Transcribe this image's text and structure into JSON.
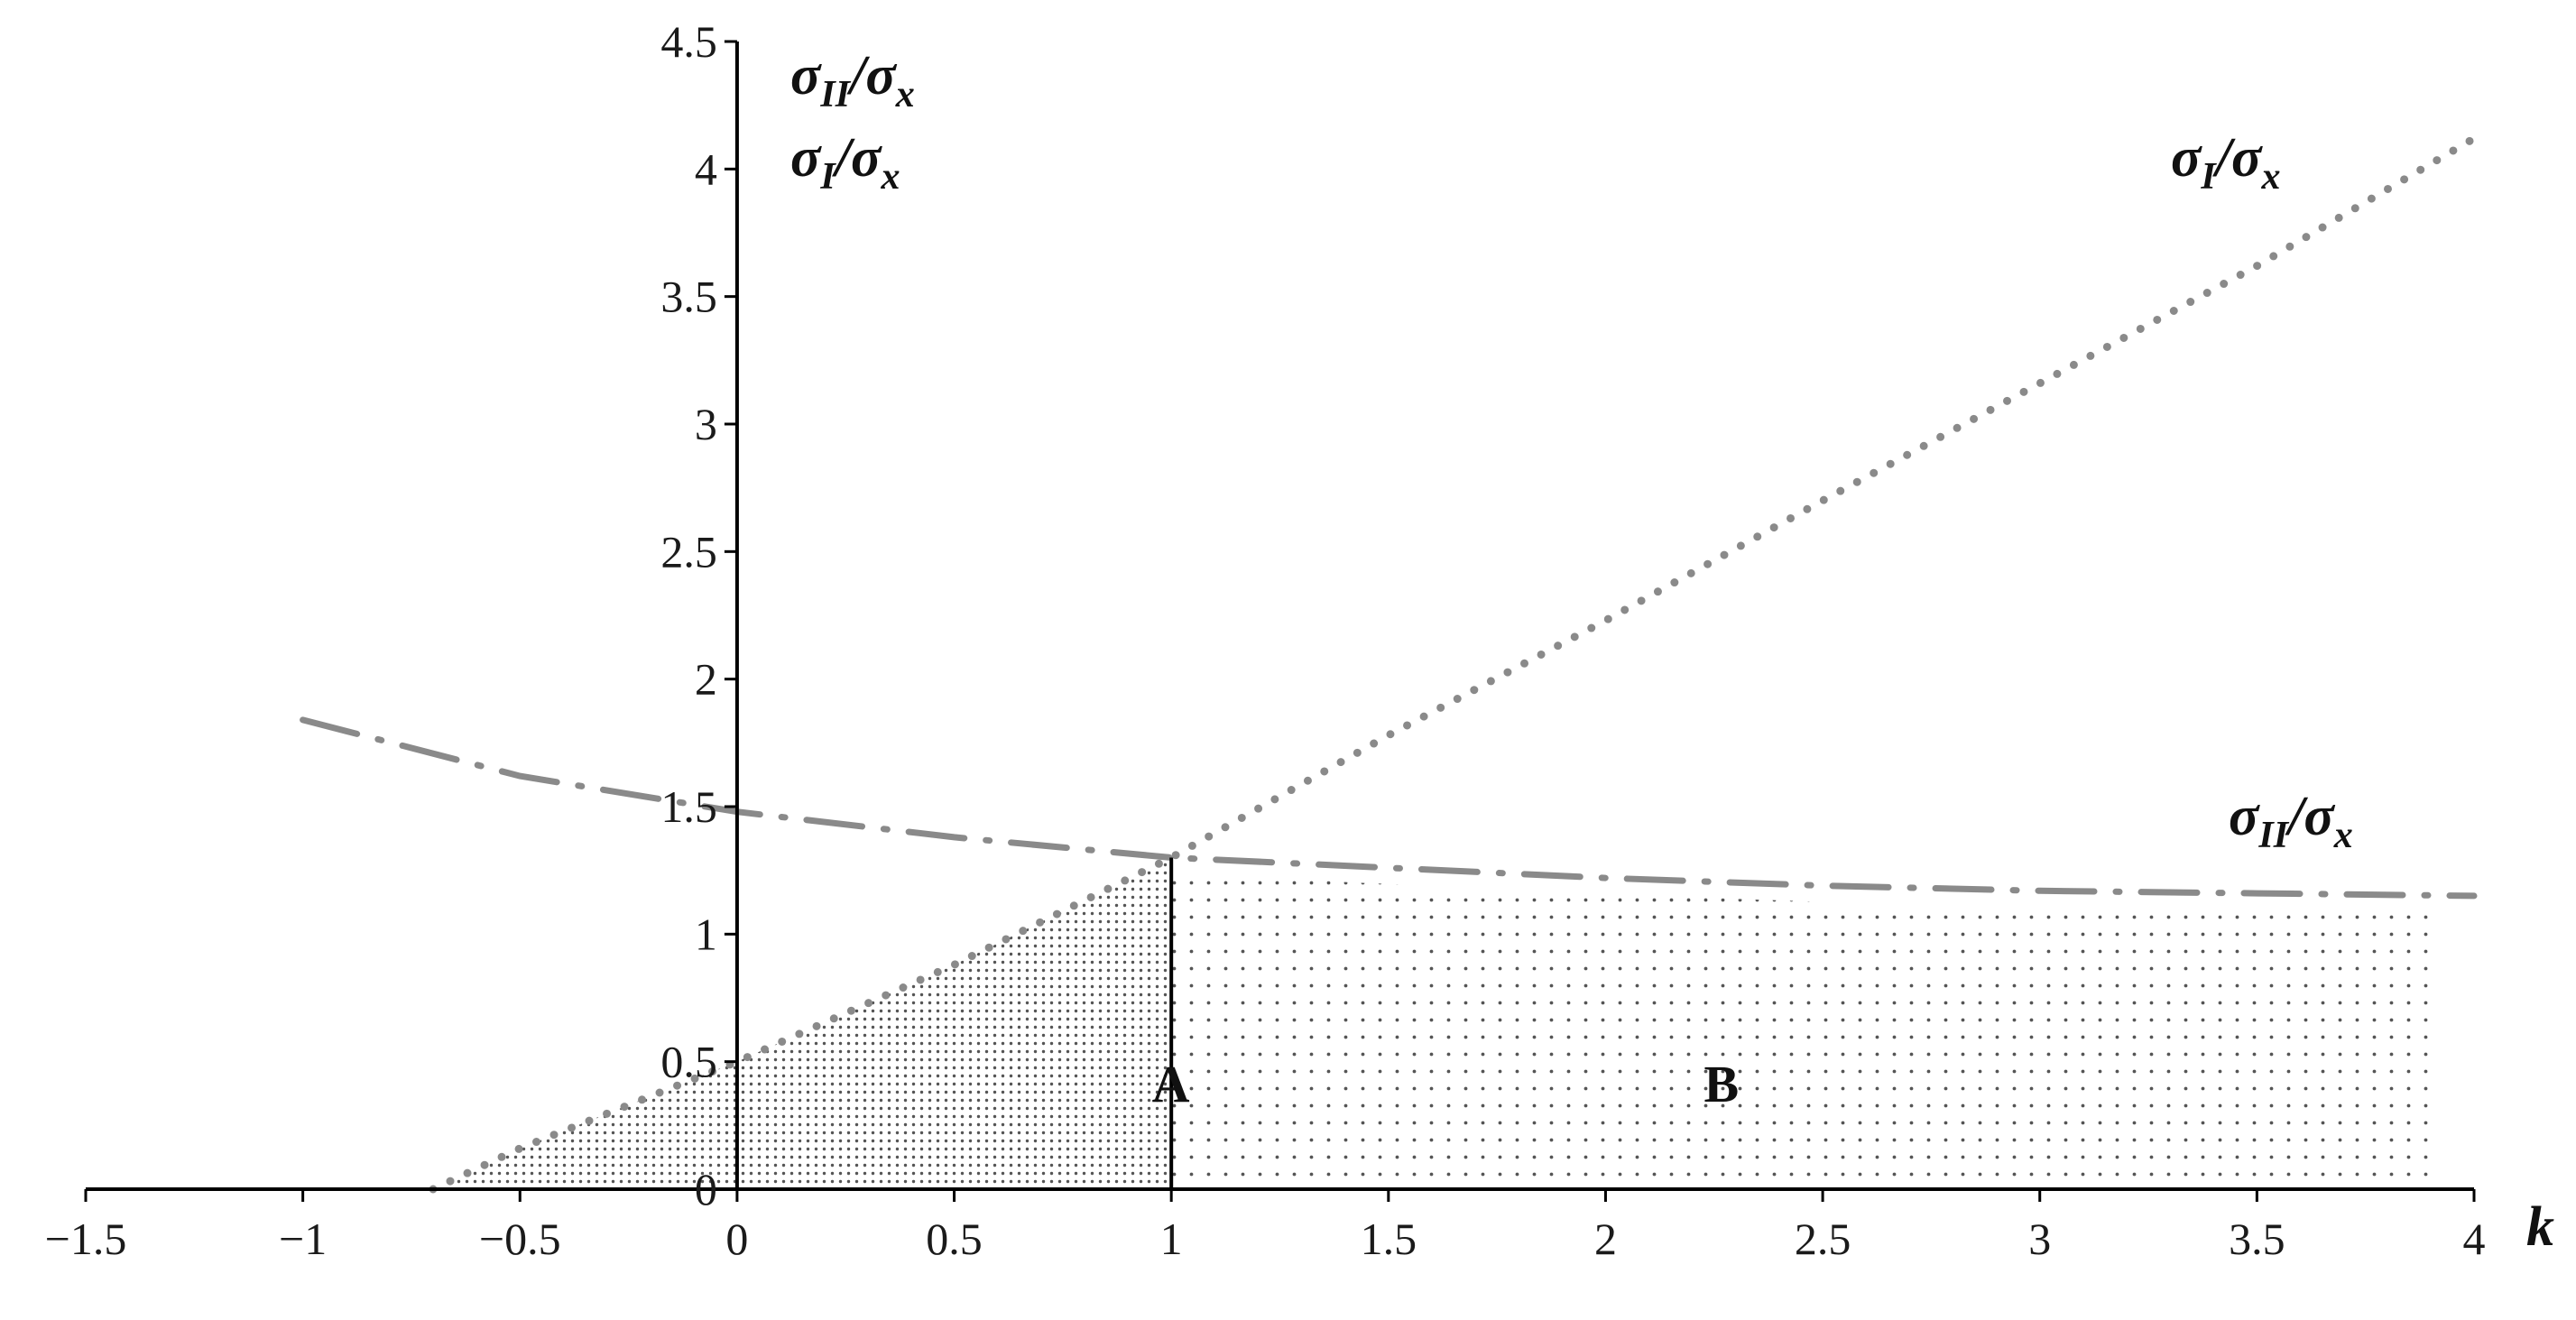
{
  "chart_data": {
    "type": "line",
    "xlabel": "k",
    "ylabel_line1": {
      "base": "σ",
      "sub": "II",
      "tail": "/σ",
      "tail_sub": "x"
    },
    "ylabel_line2": {
      "base": "σ",
      "sub": "I",
      "tail": "/σ",
      "tail_sub": "x"
    },
    "xlim": [
      -1.5,
      4
    ],
    "ylim": [
      0,
      4.5
    ],
    "x_ticks": [
      "−1.5",
      "−1",
      "−0.5",
      "0",
      "0.5",
      "1",
      "1.5",
      "2",
      "2.5",
      "3",
      "3.5",
      "4"
    ],
    "x_tick_values": [
      -1.5,
      -1,
      -0.5,
      0,
      0.5,
      1,
      1.5,
      2,
      2.5,
      3,
      3.5,
      4
    ],
    "y_ticks": [
      "0",
      "0.5",
      "1",
      "1.5",
      "2",
      "2.5",
      "3",
      "3.5",
      "4",
      "4.5"
    ],
    "y_tick_values": [
      0,
      0.5,
      1,
      1.5,
      2,
      2.5,
      3,
      3.5,
      4,
      4.5
    ],
    "grid": false,
    "series": [
      {
        "style": "dotted",
        "color": "#8a8a8a",
        "label": {
          "base": "σ",
          "sub": "I",
          "tail": "/σ",
          "tail_sub": "x"
        },
        "x": [
          -0.7,
          -0.5,
          0,
          0.5,
          1,
          1.5,
          2,
          2.5,
          3,
          3.5,
          4
        ],
        "y": [
          0.0,
          0.16,
          0.5,
          0.88,
          1.3,
          1.78,
          2.23,
          2.7,
          3.16,
          3.62,
          4.12
        ]
      },
      {
        "style": "dash-dot",
        "color": "#8a8a8a",
        "label": {
          "base": "σ",
          "sub": "II",
          "tail": "/σ",
          "tail_sub": "x"
        },
        "x": [
          -1,
          -0.5,
          0,
          0.5,
          1,
          1.5,
          2,
          2.5,
          3,
          3.5,
          4
        ],
        "y": [
          1.84,
          1.62,
          1.48,
          1.38,
          1.3,
          1.26,
          1.22,
          1.19,
          1.17,
          1.16,
          1.15
        ]
      }
    ],
    "regions": [
      {
        "name": "A",
        "pattern": "dense-dots",
        "x_from": -0.7,
        "x_to": 1.0,
        "label_at": [
          0.5,
          0.45
        ]
      },
      {
        "name": "B",
        "pattern": "sparse-dots",
        "x_from": 1.0,
        "x_to": 3.9,
        "label_at": [
          2.35,
          0.45
        ]
      }
    ],
    "divider_x": 1.0
  }
}
